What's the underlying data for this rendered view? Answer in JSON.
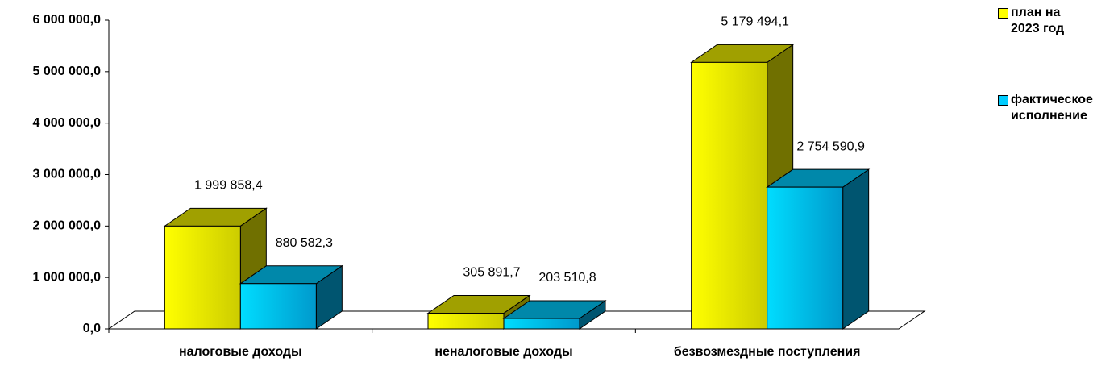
{
  "chart_data": {
    "type": "bar3d",
    "categories": [
      "налоговые доходы",
      "неналоговые доходы",
      "безвозмездные поступления"
    ],
    "series": [
      {
        "name": "план на 2023 год",
        "color": "#ffff00",
        "values": [
          1999858.4,
          305891.7,
          5179494.1
        ],
        "value_labels": [
          "1 999 858,4",
          "305 891,7",
          "5 179 494,1"
        ]
      },
      {
        "name": "фактическое исполнение",
        "color": "#00ccff",
        "values": [
          880582.3,
          203510.8,
          2754590.9
        ],
        "value_labels": [
          "880 582,3",
          "203 510,8",
          "2 754 590,9"
        ]
      }
    ],
    "ylim": [
      0,
      6000000
    ],
    "yticks": [
      {
        "value": 0,
        "label": "0,0"
      },
      {
        "value": 1000000,
        "label": "1 000 000,0"
      },
      {
        "value": 2000000,
        "label": "2 000 000,0"
      },
      {
        "value": 3000000,
        "label": "3 000 000,0"
      },
      {
        "value": 4000000,
        "label": "4 000 000,0"
      },
      {
        "value": 5000000,
        "label": "5 000 000,0"
      },
      {
        "value": 6000000,
        "label": "6 000 000,0"
      }
    ],
    "legend": "right"
  }
}
